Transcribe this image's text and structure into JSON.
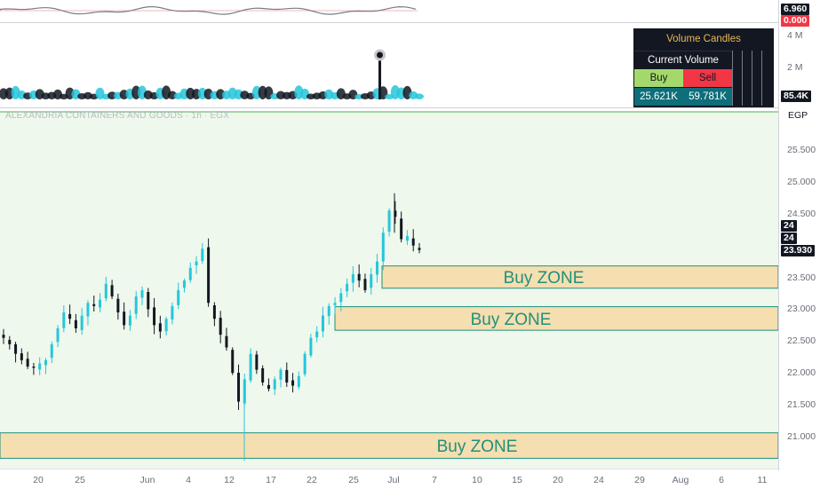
{
  "symbol_line": "ALEXANDRIA CONTAINERS AND GOODS · 1h · EGX",
  "currency": "EGP",
  "colors": {
    "up": "#26c6da",
    "down": "#131722",
    "zone_fill": "#f5deb0",
    "zone_border": "#20907c",
    "bg_tint": "#eef8ec",
    "buy_cell": "#26a34a",
    "sell_cell": "#f23645"
  },
  "top_indicator": {
    "value_tag": "6.960",
    "zero_tag": "0.000"
  },
  "volume_pane": {
    "axis_labels": [
      "4 M",
      "2 M"
    ],
    "last_tag": "85.4K",
    "table": {
      "title": "Volume Candles",
      "current_label": "Current Volume",
      "buy_label": "Buy",
      "sell_label": "Sell",
      "buy_value": "25.621K",
      "sell_value": "59.781K"
    }
  },
  "price_axis": {
    "labels": [
      "25.500",
      "25.000",
      "24.500",
      "23.500",
      "23.000",
      "22.500",
      "22.000",
      "21.500",
      "21.000"
    ],
    "tags": [
      "24",
      "24",
      "23.930"
    ]
  },
  "time_axis": [
    "20",
    "25",
    "Jun",
    "4",
    "12",
    "17",
    "22",
    "25",
    "Jul",
    "7",
    "10",
    "15",
    "20",
    "24",
    "29",
    "Aug",
    "6",
    "11"
  ],
  "chart_data": {
    "type": "candlestick",
    "ylim": [
      20.55,
      25.95
    ],
    "buy_zones": [
      {
        "label": "Buy ZONE",
        "low": 23.33,
        "high": 23.68
      },
      {
        "label": "Buy ZONE",
        "low": 22.67,
        "high": 23.04
      },
      {
        "label": "Buy ZONE",
        "low": 20.66,
        "high": 21.06
      }
    ],
    "close_path": [
      22.55,
      22.45,
      22.3,
      22.2,
      22.1,
      22.08,
      22.15,
      22.2,
      22.45,
      22.7,
      22.95,
      22.85,
      22.7,
      22.9,
      23.1,
      23.05,
      23.15,
      23.4,
      23.2,
      22.95,
      22.75,
      22.9,
      23.2,
      23.3,
      23.0,
      22.75,
      22.65,
      22.85,
      23.05,
      23.3,
      23.45,
      23.65,
      23.75,
      23.95,
      23.1,
      22.85,
      22.6,
      22.4,
      22.0,
      21.55,
      21.9,
      22.3,
      22.05,
      21.85,
      21.75,
      21.9,
      22.05,
      21.85,
      21.8,
      21.95,
      22.3,
      22.55,
      22.65,
      22.9,
      23.05,
      23.1,
      23.25,
      23.4,
      23.55,
      23.45,
      23.3,
      23.55,
      23.75,
      24.2,
      24.55,
      24.45,
      24.1,
      24.15,
      24.0,
      23.93
    ],
    "volume_spike": {
      "index": 62,
      "value": 4.0
    }
  }
}
